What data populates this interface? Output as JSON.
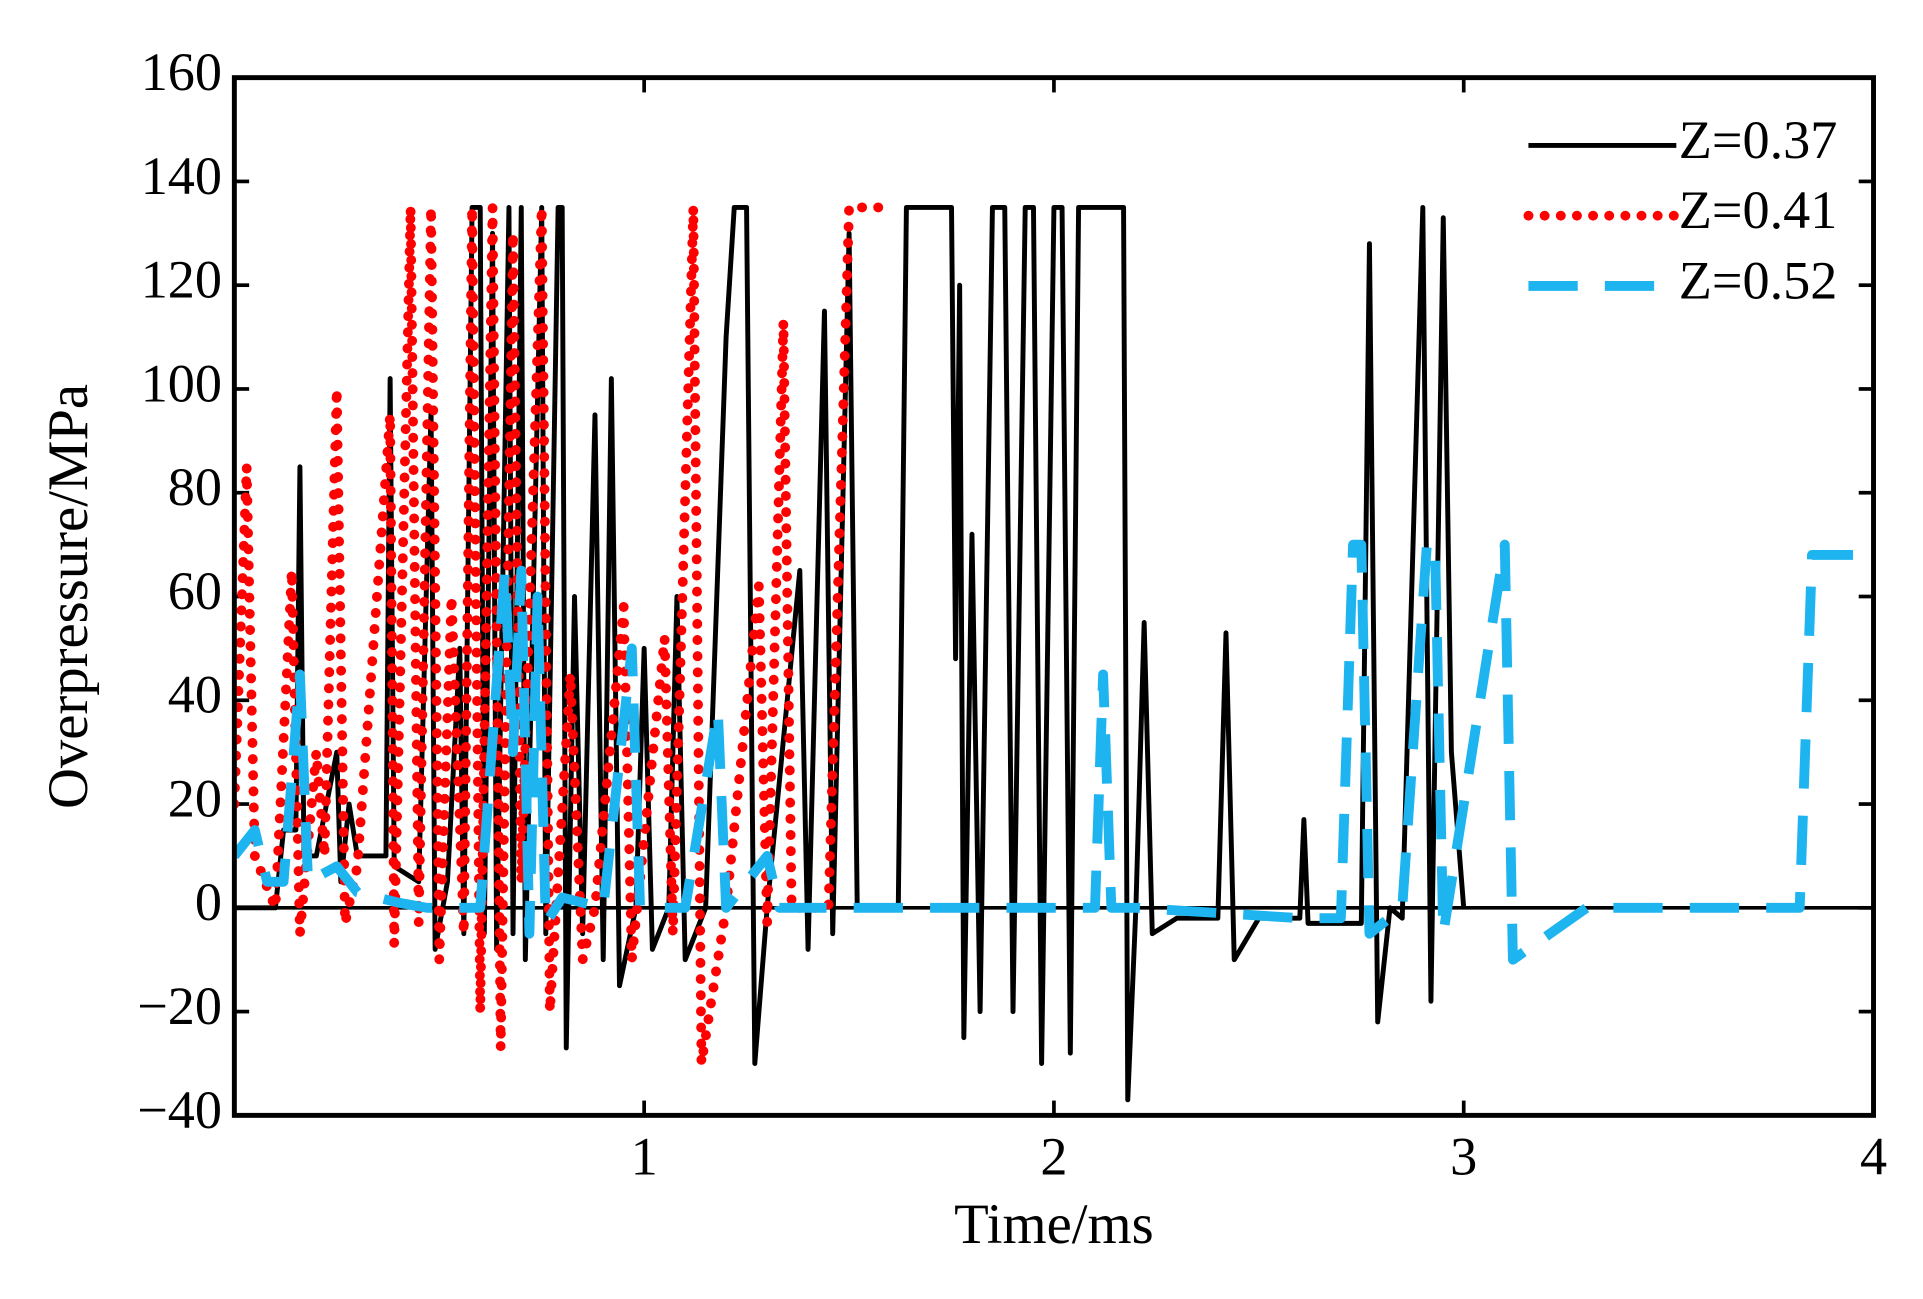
{
  "chart_data": {
    "type": "line",
    "xlabel": "Time/ms",
    "ylabel": "Overpressure/MPa",
    "xlim": [
      0,
      4
    ],
    "xticks": [
      1,
      2,
      3,
      4
    ],
    "ylim": [
      -40,
      160
    ],
    "yticks": [
      {
        "value": -40,
        "label": "−40"
      },
      {
        "value": -20,
        "label": "−20"
      },
      0,
      20,
      40,
      60,
      80,
      100,
      120,
      140,
      160
    ],
    "legend": "upper right",
    "series": [
      {
        "name": "Z=0.37",
        "color": "#000000",
        "style": "solid",
        "x": [
          0.0,
          0.1,
          0.12,
          0.15,
          0.16,
          0.17,
          0.2,
          0.25,
          0.26,
          0.28,
          0.3,
          0.37,
          0.38,
          0.39,
          0.45,
          0.48,
          0.49,
          0.52,
          0.55,
          0.56,
          0.58,
          0.6,
          0.61,
          0.63,
          0.64,
          0.67,
          0.68,
          0.7,
          0.71,
          0.75,
          0.76,
          0.79,
          0.8,
          0.81,
          0.83,
          0.85,
          0.88,
          0.9,
          0.92,
          0.94,
          0.98,
          1.0,
          1.02,
          1.06,
          1.08,
          1.1,
          1.15,
          1.2,
          1.22,
          1.25,
          1.27,
          1.3,
          1.38,
          1.4,
          1.44,
          1.46,
          1.5,
          1.52,
          1.62,
          1.64,
          1.75,
          1.76,
          1.77,
          1.78,
          1.8,
          1.82,
          1.85,
          1.88,
          1.9,
          1.93,
          1.95,
          1.97,
          2.0,
          2.02,
          2.04,
          2.06,
          2.1,
          2.17,
          2.18,
          2.2,
          2.22,
          2.24,
          2.3,
          2.4,
          2.42,
          2.44,
          2.5,
          2.6,
          2.61,
          2.62,
          2.75,
          2.77,
          2.79,
          2.82,
          2.85,
          2.9,
          2.92,
          2.95,
          2.97,
          3.0
        ],
        "values": [
          0,
          0,
          15,
          15,
          85,
          10,
          10,
          30,
          5,
          20,
          10,
          10,
          102,
          8,
          5,
          96,
          -8,
          5,
          50,
          -5,
          135,
          135,
          -5,
          130,
          -8,
          135,
          -5,
          135,
          -10,
          135,
          -5,
          135,
          135,
          -27,
          60,
          -5,
          95,
          -10,
          102,
          -15,
          0,
          50,
          -8,
          0,
          60,
          -10,
          0,
          110,
          135,
          135,
          -30,
          0,
          65,
          -8,
          115,
          -5,
          130,
          0,
          0,
          135,
          135,
          48,
          120,
          -25,
          72,
          -20,
          135,
          135,
          -20,
          135,
          135,
          -30,
          135,
          135,
          -28,
          135,
          135,
          135,
          -37,
          0,
          55,
          -5,
          -2,
          -2,
          53,
          -10,
          -2,
          -2,
          17,
          -3,
          -3,
          128,
          -22,
          0,
          -2,
          135,
          -18,
          133,
          30,
          0
        ]
      },
      {
        "name": "Z=0.41",
        "color": "#ff0000",
        "style": "dotted",
        "x": [
          0,
          0.03,
          0.05,
          0.1,
          0.14,
          0.16,
          0.2,
          0.22,
          0.25,
          0.27,
          0.3,
          0.38,
          0.39,
          0.43,
          0.45,
          0.48,
          0.5,
          0.53,
          0.56,
          0.58,
          0.6,
          0.63,
          0.65,
          0.68,
          0.7,
          0.75,
          0.77,
          0.82,
          0.85,
          0.88,
          0.95,
          0.97,
          1.05,
          1.07,
          1.12,
          1.14,
          1.2,
          1.28,
          1.3,
          1.34,
          1.36,
          1.45,
          1.5,
          1.58
        ],
        "values": [
          20,
          85,
          10,
          0,
          65,
          -5,
          30,
          10,
          100,
          -3,
          8,
          95,
          -7,
          135,
          -3,
          135,
          -10,
          60,
          -5,
          135,
          -20,
          135,
          -27,
          130,
          5,
          135,
          -20,
          45,
          -10,
          0,
          58,
          -10,
          52,
          -5,
          135,
          -30,
          0,
          62,
          -3,
          113,
          0,
          0,
          135,
          135
        ]
      },
      {
        "name": "Z=0.52",
        "color": "#1eb4f0",
        "style": "dashed",
        "x": [
          0,
          0.05,
          0.08,
          0.12,
          0.16,
          0.18,
          0.25,
          0.3,
          0.4,
          0.47,
          0.6,
          0.66,
          0.68,
          0.7,
          0.72,
          0.74,
          0.76,
          0.8,
          0.9,
          0.97,
          0.99,
          1.1,
          1.18,
          1.2,
          1.3,
          1.33,
          1.6,
          2.1,
          2.12,
          2.14,
          2.2,
          2.6,
          2.7,
          2.73,
          2.75,
          2.77,
          2.85,
          2.91,
          2.93,
          2.95,
          3.1,
          3.12,
          3.3,
          3.82,
          3.85,
          3.95
        ],
        "values": [
          10,
          15,
          5,
          5,
          45,
          5,
          8,
          3,
          1,
          0,
          0,
          65,
          30,
          65,
          -5,
          60,
          -3,
          2,
          0,
          50,
          0,
          0,
          38,
          0,
          10,
          0,
          0,
          0,
          45,
          0,
          0,
          -2,
          -2,
          70,
          70,
          -5,
          0,
          70,
          70,
          -5,
          70,
          -10,
          0,
          0,
          68,
          68
        ]
      }
    ]
  }
}
